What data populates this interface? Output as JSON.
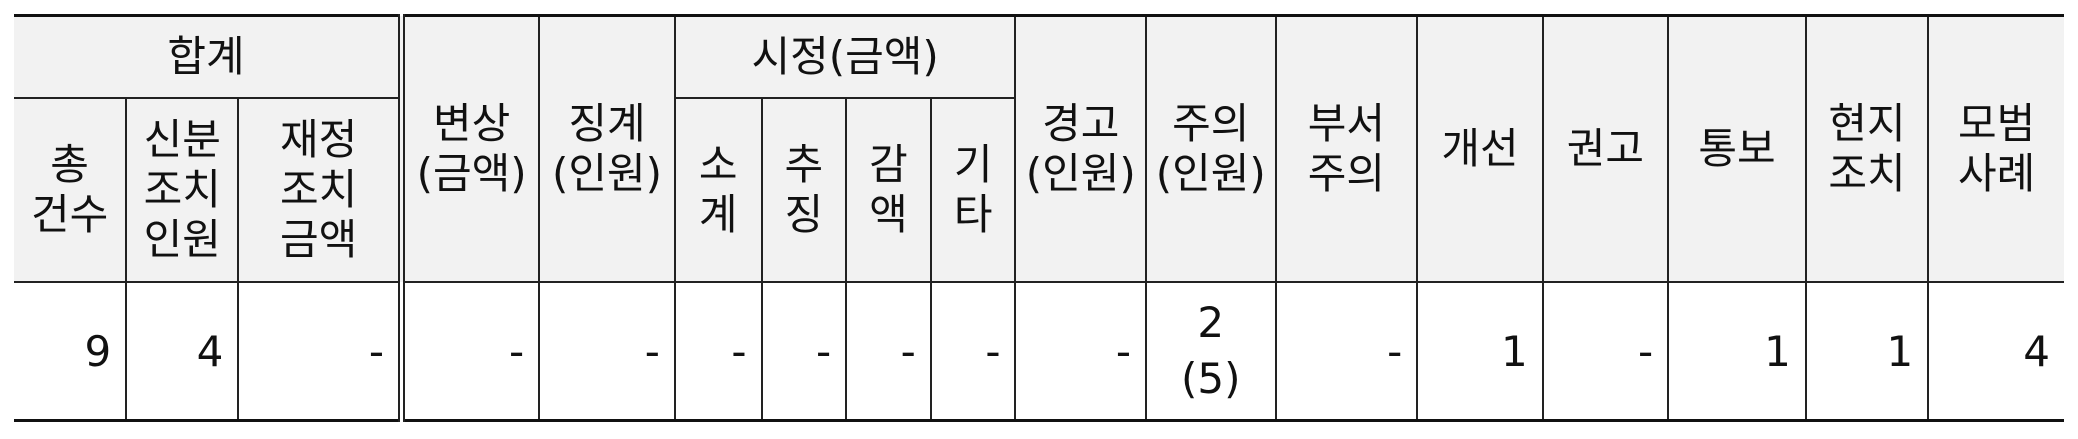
{
  "headers": {
    "total_group": "합계",
    "total_count": "총\n건수",
    "personal_action": "신분\n조치\n인원",
    "financial_action": "재정\n조치\n금액",
    "compensation": "변상\n(금액)",
    "discipline": "징계\n(인원)",
    "correction_group": "시정(금액)",
    "correction_recover": "소\n계",
    "correction_collect": "추\n징",
    "correction_reduce": "감\n액",
    "correction_other": "기\n타",
    "warning": "경고\n(인원)",
    "caution": "주의\n(인원)",
    "dept_caution": "부서\n주의",
    "improvement": "개선",
    "recommendation": "권고",
    "notice": "통보",
    "onsite_action": "현지\n조치",
    "best_practice": "모범\n사례"
  },
  "row": {
    "total_count": "9",
    "personal_action": "4",
    "financial_action": "-",
    "compensation": "-",
    "discipline": "-",
    "correction_recover": "-",
    "correction_collect": "-",
    "correction_reduce": "-",
    "correction_other": "-",
    "warning": "-",
    "caution_count": "2",
    "caution_people": "(5)",
    "dept_caution": "-",
    "improvement": "1",
    "recommendation": "-",
    "notice": "1",
    "onsite_action": "1",
    "best_practice": "4"
  }
}
